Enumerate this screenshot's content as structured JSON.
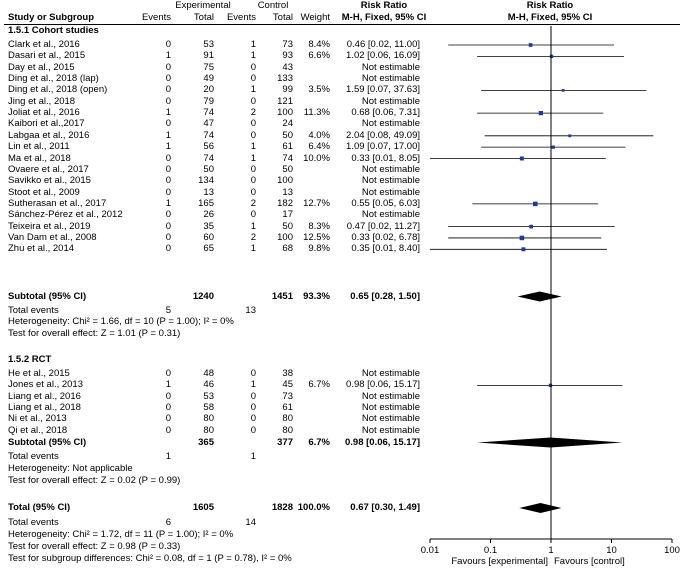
{
  "chart_data": {
    "type": "forest",
    "header": {
      "group_experimental": "Experimental",
      "group_control": "Control",
      "col_study": "Study or Subgroup",
      "col_events": "Events",
      "col_total": "Total",
      "col_weight": "Weight",
      "col_rr_title": "Risk Ratio",
      "col_rr_method": "M-H, Fixed, 95% CI",
      "plot_title": "Risk Ratio",
      "plot_method": "M-H, Fixed, 95% CI"
    },
    "axis": {
      "scale": "log",
      "range": [
        0.01,
        100
      ],
      "ticks": [
        "0.01",
        "0.1",
        "1",
        "10",
        "100"
      ],
      "left_label": "Favours [experimental]",
      "right_label": "Favours [control]"
    },
    "subgroups": [
      {
        "title": "1.5.1 Cohort studies",
        "studies": [
          {
            "name": "Clark et al., 2016",
            "e_events": "0",
            "e_total": "53",
            "c_events": "1",
            "c_total": "73",
            "weight": "8.4%",
            "ci_text": "0.46 [0.02, 11.00]",
            "rr": 0.46,
            "lo": 0.02,
            "hi": 11.0
          },
          {
            "name": "Dasari et al., 2015",
            "e_events": "1",
            "e_total": "91",
            "c_events": "1",
            "c_total": "93",
            "weight": "6.6%",
            "ci_text": "1.02 [0.06, 16.09]",
            "rr": 1.02,
            "lo": 0.06,
            "hi": 16.09
          },
          {
            "name": "Day et al., 2015",
            "e_events": "0",
            "e_total": "75",
            "c_events": "0",
            "c_total": "43",
            "weight": "",
            "ci_text": "Not estimable",
            "rr": null,
            "lo": null,
            "hi": null
          },
          {
            "name": "Ding et al., 2018 (lap)",
            "e_events": "0",
            "e_total": "49",
            "c_events": "0",
            "c_total": "133",
            "weight": "",
            "ci_text": "Not estimable",
            "rr": null,
            "lo": null,
            "hi": null
          },
          {
            "name": "Ding et al., 2018 (open)",
            "e_events": "0",
            "e_total": "20",
            "c_events": "1",
            "c_total": "99",
            "weight": "3.5%",
            "ci_text": "1.59 [0.07, 37.63]",
            "rr": 1.59,
            "lo": 0.07,
            "hi": 37.63
          },
          {
            "name": "Jing et al., 2018",
            "e_events": "0",
            "e_total": "79",
            "c_events": "0",
            "c_total": "121",
            "weight": "",
            "ci_text": "Not estimable",
            "rr": null,
            "lo": null,
            "hi": null
          },
          {
            "name": "Joliat et al., 2016",
            "e_events": "1",
            "e_total": "74",
            "c_events": "2",
            "c_total": "100",
            "weight": "11.3%",
            "ci_text": "0.68 [0.06, 7.31]",
            "rr": 0.68,
            "lo": 0.06,
            "hi": 7.31
          },
          {
            "name": "Kaibori et al.,2017",
            "e_events": "0",
            "e_total": "47",
            "c_events": "0",
            "c_total": "24",
            "weight": "",
            "ci_text": "Not estimable",
            "rr": null,
            "lo": null,
            "hi": null
          },
          {
            "name": "Labgaa et al., 2016",
            "e_events": "1",
            "e_total": "74",
            "c_events": "0",
            "c_total": "50",
            "weight": "4.0%",
            "ci_text": "2.04 [0.08, 49.09]",
            "rr": 2.04,
            "lo": 0.08,
            "hi": 49.09
          },
          {
            "name": "Lin et al., 2011",
            "e_events": "1",
            "e_total": "56",
            "c_events": "1",
            "c_total": "61",
            "weight": "6.4%",
            "ci_text": "1.09 [0.07, 17.00]",
            "rr": 1.09,
            "lo": 0.07,
            "hi": 17.0
          },
          {
            "name": "Ma et al., 2018",
            "e_events": "0",
            "e_total": "74",
            "c_events": "1",
            "c_total": "74",
            "weight": "10.0%",
            "ci_text": "0.33 [0.01, 8.05]",
            "rr": 0.33,
            "lo": 0.01,
            "hi": 8.05
          },
          {
            "name": "Ovaere et al., 2017",
            "e_events": "0",
            "e_total": "50",
            "c_events": "0",
            "c_total": "50",
            "weight": "",
            "ci_text": "Not estimable",
            "rr": null,
            "lo": null,
            "hi": null
          },
          {
            "name": "Savikko et al., 2015",
            "e_events": "0",
            "e_total": "134",
            "c_events": "0",
            "c_total": "100",
            "weight": "",
            "ci_text": "Not estimable",
            "rr": null,
            "lo": null,
            "hi": null
          },
          {
            "name": "Stoot et al., 2009",
            "e_events": "0",
            "e_total": "13",
            "c_events": "0",
            "c_total": "13",
            "weight": "",
            "ci_text": "Not estimable",
            "rr": null,
            "lo": null,
            "hi": null
          },
          {
            "name": "Sutherasan et al., 2017",
            "e_events": "1",
            "e_total": "165",
            "c_events": "2",
            "c_total": "182",
            "weight": "12.7%",
            "ci_text": "0.55 [0.05, 6.03]",
            "rr": 0.55,
            "lo": 0.05,
            "hi": 6.03
          },
          {
            "name": "Sánchez-Pérez et al., 2012",
            "e_events": "0",
            "e_total": "26",
            "c_events": "0",
            "c_total": "17",
            "weight": "",
            "ci_text": "Not estimable",
            "rr": null,
            "lo": null,
            "hi": null
          },
          {
            "name": "Teixeira et al., 2019",
            "e_events": "0",
            "e_total": "35",
            "c_events": "1",
            "c_total": "50",
            "weight": "8.3%",
            "ci_text": "0.47 [0.02, 11.27]",
            "rr": 0.47,
            "lo": 0.02,
            "hi": 11.27
          },
          {
            "name": "Van Dam et al., 2008",
            "e_events": "0",
            "e_total": "60",
            "c_events": "2",
            "c_total": "100",
            "weight": "12.5%",
            "ci_text": "0.33 [0.02, 6.78]",
            "rr": 0.33,
            "lo": 0.02,
            "hi": 6.78
          },
          {
            "name": "Zhu et al., 2014",
            "e_events": "0",
            "e_total": "65",
            "c_events": "1",
            "c_total": "68",
            "weight": "9.8%",
            "ci_text": "0.35 [0.01, 8.40]",
            "rr": 0.35,
            "lo": 0.01,
            "hi": 8.4
          }
        ],
        "subtotal": {
          "label": "Subtotal (95% CI)",
          "e_total": "1240",
          "c_total": "1451",
          "weight": "93.3%",
          "ci_text": "0.65 [0.28, 1.50]",
          "rr": 0.65,
          "lo": 0.28,
          "hi": 1.5
        },
        "total_events": {
          "label": "Total events",
          "e": "5",
          "c": "13"
        },
        "heterogeneity": "Heterogeneity: Chi² = 1.66, df = 10 (P = 1.00); I² = 0%",
        "overall_effect": "Test for overall effect: Z = 1.01 (P = 0.31)"
      },
      {
        "title": "1.5.2 RCT",
        "studies": [
          {
            "name": "He et al., 2015",
            "e_events": "0",
            "e_total": "48",
            "c_events": "0",
            "c_total": "38",
            "weight": "",
            "ci_text": "Not estimable",
            "rr": null,
            "lo": null,
            "hi": null
          },
          {
            "name": "Jones et al., 2013",
            "e_events": "1",
            "e_total": "46",
            "c_events": "1",
            "c_total": "45",
            "weight": "6.7%",
            "ci_text": "0.98 [0.06, 15.17]",
            "rr": 0.98,
            "lo": 0.06,
            "hi": 15.17
          },
          {
            "name": "Liang et al., 2016",
            "e_events": "0",
            "e_total": "53",
            "c_events": "0",
            "c_total": "73",
            "weight": "",
            "ci_text": "Not estimable",
            "rr": null,
            "lo": null,
            "hi": null
          },
          {
            "name": "Liang et al., 2018",
            "e_events": "0",
            "e_total": "58",
            "c_events": "0",
            "c_total": "61",
            "weight": "",
            "ci_text": "Not estimable",
            "rr": null,
            "lo": null,
            "hi": null
          },
          {
            "name": "Ni et al., 2013",
            "e_events": "0",
            "e_total": "80",
            "c_events": "0",
            "c_total": "80",
            "weight": "",
            "ci_text": "Not estimable",
            "rr": null,
            "lo": null,
            "hi": null
          },
          {
            "name": "Qi et al., 2018",
            "e_events": "0",
            "e_total": "80",
            "c_events": "0",
            "c_total": "80",
            "weight": "",
            "ci_text": "Not estimable",
            "rr": null,
            "lo": null,
            "hi": null
          }
        ],
        "subtotal": {
          "label": "Subtotal (95% CI)",
          "e_total": "365",
          "c_total": "377",
          "weight": "6.7%",
          "ci_text": "0.98 [0.06, 15.17]",
          "rr": 0.98,
          "lo": 0.06,
          "hi": 15.17
        },
        "total_events": {
          "label": "Total events",
          "e": "1",
          "c": "1"
        },
        "heterogeneity": "Heterogeneity: Not applicable",
        "overall_effect": "Test for overall effect: Z = 0.02 (P = 0.99)"
      }
    ],
    "total": {
      "label": "Total (95% CI)",
      "e_total": "1605",
      "c_total": "1828",
      "weight": "100.0%",
      "ci_text": "0.67 [0.30, 1.49]",
      "rr": 0.67,
      "lo": 0.3,
      "hi": 1.49
    },
    "total_events": {
      "label": "Total events",
      "e": "6",
      "c": "14"
    },
    "heterogeneity": "Heterogeneity: Chi² = 1.72, df = 11 (P = 1.00); I² = 0%",
    "overall_effect": "Test for overall effect: Z = 0.98 (P = 0.33)",
    "subgroup_differences": "Test for subgroup differences: Chi² = 0.08, df = 1 (P = 0.78), I² = 0%",
    "colors": {
      "marker": "#1f3a9e",
      "line": "#000000",
      "diamond": "#000000"
    }
  }
}
